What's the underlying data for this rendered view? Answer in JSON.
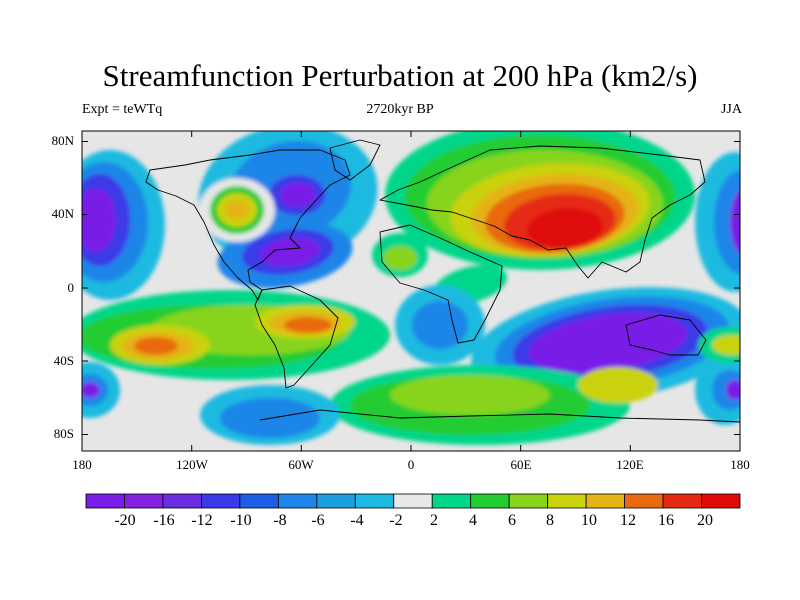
{
  "title": "Streamfunction Perturbation at 200 hPa (km2/s)",
  "experiment": "Expt = teWTq",
  "time_label": "2720kyr BP",
  "season": "JJA",
  "lat_labels": [
    "80N",
    "40N",
    "0",
    "40S",
    "80S"
  ],
  "lon_labels": [
    "180",
    "120W",
    "60W",
    "0",
    "60E",
    "120E",
    "180"
  ],
  "colorbar": {
    "labels": [
      "-20",
      "-16",
      "-12",
      "-10",
      "-8",
      "-6",
      "-4",
      "-2",
      "2",
      "4",
      "6",
      "8",
      "10",
      "12",
      "16",
      "20"
    ],
    "colors": [
      "#7a1de8",
      "#8421e0",
      "#6a2de0",
      "#3a3ae8",
      "#1c5ee8",
      "#1f85e8",
      "#1aa0e0",
      "#1cbae0",
      "#e8e8e8",
      "#00d68a",
      "#22cc33",
      "#88d41a",
      "#cad20e",
      "#e4b416",
      "#e86a0e",
      "#e62a12",
      "#e00a0a"
    ]
  },
  "field_colors": {
    "neutral": "#e6e6e6",
    "neg_outer": "#1cbae0",
    "neg_mid": "#1f85e8",
    "neg_inner": "#3a3ae8",
    "neg_core": "#7a1de8",
    "pos_outer": "#00d68a",
    "pos_mid": "#22cc33",
    "pos_yg": "#88d41a",
    "pos_yellow": "#cad20e",
    "pos_orange": "#e4b416",
    "pos_darkorange": "#e86a0e",
    "pos_red": "#e62a12",
    "pos_core": "#e00a0a"
  },
  "map_colors": {
    "frame": "#000000",
    "coast": "#000000"
  }
}
